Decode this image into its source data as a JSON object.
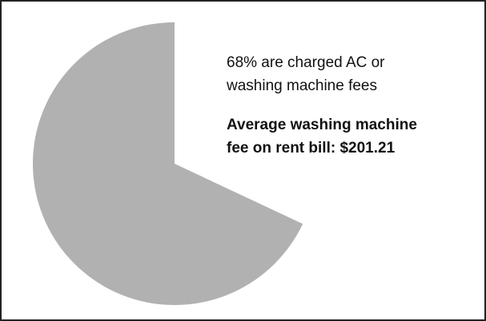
{
  "chart_data": {
    "type": "pie",
    "values": [
      68
    ],
    "color": "#b1b1b1",
    "annotation": [
      "68% are charged AC or",
      "washing machine fees"
    ],
    "highlight": [
      "Average washing machine",
      "fee on rent bill: $201.21"
    ]
  }
}
